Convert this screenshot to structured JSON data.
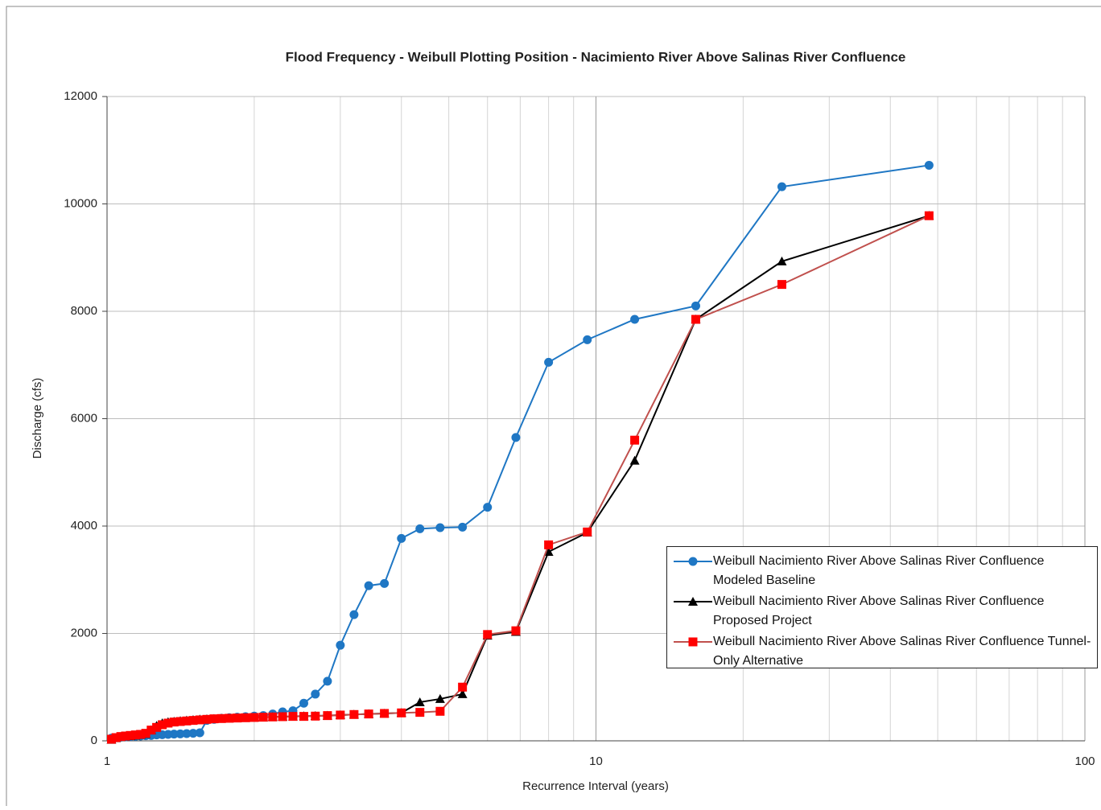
{
  "chart_data": {
    "type": "line",
    "title": "Flood Frequency - Weibull Plotting Position - Nacimiento River Above Salinas River Confluence",
    "x_label": "Recurrence Interval (years)",
    "y_label": "Discharge (cfs)",
    "xscale": "log",
    "xlim": [
      1,
      100
    ],
    "xticks": [
      1,
      10,
      100
    ],
    "minor_grid": true,
    "ylim": [
      0,
      12000
    ],
    "yticks": [
      0,
      2000,
      4000,
      6000,
      8000,
      10000,
      12000
    ],
    "grid": true,
    "x": [
      48,
      24,
      16,
      12,
      9.6,
      8,
      6.857,
      6,
      5.333,
      4.8,
      4.364,
      4,
      3.692,
      3.429,
      3.2,
      3,
      2.824,
      2.667,
      2.526,
      2.4,
      2.286,
      2.182,
      2.087,
      2,
      1.92,
      1.846,
      1.778,
      1.714,
      1.655,
      1.6,
      1.548,
      1.5,
      1.455,
      1.412,
      1.371,
      1.333,
      1.297,
      1.263,
      1.231,
      1.2,
      1.171,
      1.143,
      1.116,
      1.091,
      1.067,
      1.043,
      1.021
    ],
    "series": [
      {
        "name": "Weibull Nacimiento River Above Salinas River Confluence Modeled Baseline",
        "color": "#1f77c4",
        "marker": "circle",
        "values": [
          10720,
          10320,
          8100,
          7850,
          7470,
          7050,
          5650,
          4350,
          3980,
          3970,
          3950,
          3770,
          2930,
          2890,
          2350,
          1780,
          1110,
          870,
          700,
          560,
          540,
          500,
          470,
          460,
          450,
          440,
          430,
          420,
          400,
          380,
          150,
          140,
          135,
          130,
          125,
          120,
          115,
          110,
          100,
          95,
          90,
          85,
          80,
          75,
          70,
          60,
          50
        ]
      },
      {
        "name": "Weibull Nacimiento River Above Salinas River Confluence Proposed Project",
        "color": "#000000",
        "marker": "triangle",
        "values": [
          9780,
          8930,
          7850,
          5220,
          3880,
          3520,
          2030,
          1960,
          870,
          780,
          720,
          520,
          510,
          500,
          490,
          480,
          470,
          465,
          460,
          455,
          450,
          445,
          440,
          435,
          430,
          425,
          420,
          415,
          410,
          405,
          400,
          390,
          380,
          370,
          360,
          350,
          330,
          280,
          200,
          130,
          110,
          100,
          90,
          80,
          70,
          50,
          20
        ]
      },
      {
        "name": "Weibull Nacimiento River Above Salinas River Confluence Tunnel-Only Alternative",
        "color": "#c0504d",
        "marker_color": "#ff0000",
        "marker": "square",
        "values": [
          9780,
          8500,
          7850,
          5600,
          3890,
          3650,
          2050,
          1980,
          1000,
          550,
          530,
          520,
          510,
          500,
          490,
          480,
          470,
          460,
          455,
          455,
          450,
          445,
          440,
          435,
          430,
          425,
          420,
          415,
          410,
          400,
          390,
          380,
          370,
          360,
          350,
          330,
          300,
          250,
          200,
          140,
          120,
          110,
          100,
          90,
          80,
          60,
          30
        ]
      }
    ]
  }
}
